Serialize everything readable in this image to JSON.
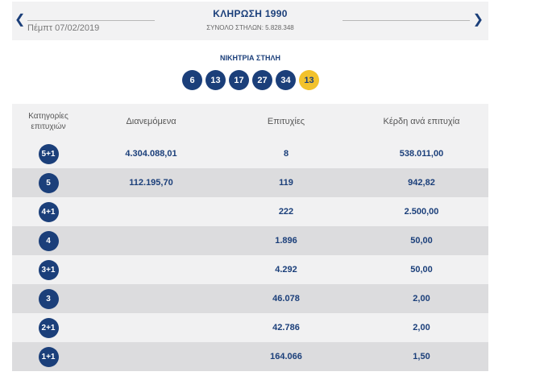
{
  "header": {
    "prev_icon": "chevron-left-icon",
    "next_icon": "chevron-right-icon",
    "date": "Πέμπτ 07/02/2019",
    "title": "ΚΛΗΡΩΣΗ 1990",
    "subtitle": "ΣΥΝΟΛΟ ΣΤΗΛΩΝ: 5.828.348"
  },
  "winning": {
    "label": "ΝΙΚΗΤΡΙΑ ΣΤΗΛΗ",
    "numbers": [
      "6",
      "13",
      "17",
      "27",
      "34"
    ],
    "joker": "13"
  },
  "table": {
    "headers": [
      "Κατηγορίες επιτυχιών",
      "Διανεμόμενα",
      "Επιτυχίες",
      "Κέρδη ανά επιτυχία"
    ],
    "rows": [
      {
        "category": "5+1",
        "distributed": "4.304.088,01",
        "winners": "8",
        "prize": "538.011,00"
      },
      {
        "category": "5",
        "distributed": "112.195,70",
        "winners": "119",
        "prize": "942,82"
      },
      {
        "category": "4+1",
        "distributed": "",
        "winners": "222",
        "prize": "2.500,00"
      },
      {
        "category": "4",
        "distributed": "",
        "winners": "1.896",
        "prize": "50,00"
      },
      {
        "category": "3+1",
        "distributed": "",
        "winners": "4.292",
        "prize": "50,00"
      },
      {
        "category": "3",
        "distributed": "",
        "winners": "46.078",
        "prize": "2,00"
      },
      {
        "category": "2+1",
        "distributed": "",
        "winners": "42.786",
        "prize": "2,00"
      },
      {
        "category": "1+1",
        "distributed": "",
        "winners": "164.066",
        "prize": "1,50"
      }
    ]
  },
  "colors": {
    "navy": "#1b3f7a",
    "joker": "#f2c22c",
    "row_light": "#f1f1f2",
    "row_dark": "#dcdcde"
  }
}
